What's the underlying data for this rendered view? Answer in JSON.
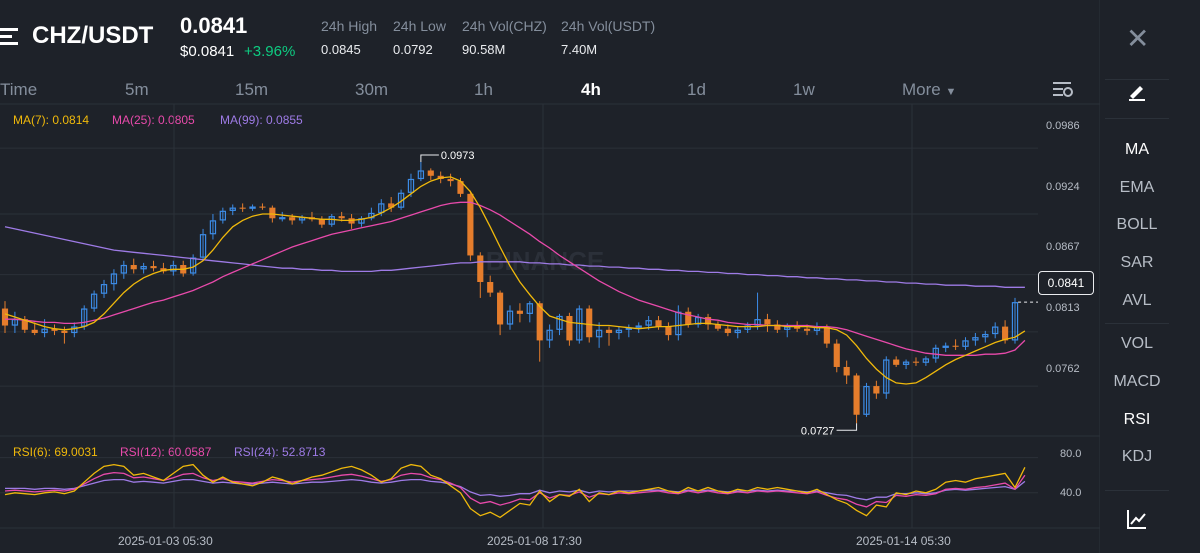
{
  "header": {
    "pair": "CHZ/USDT",
    "price": "0.0841",
    "usd_price": "$0.0841",
    "change": "+3.96%",
    "stats": [
      {
        "label": "24h High",
        "value": "0.0845"
      },
      {
        "label": "24h Low",
        "value": "0.0792"
      },
      {
        "label": "24h Vol(CHZ)",
        "value": "90.58M"
      },
      {
        "label": "24h Vol(USDT)",
        "value": "7.40M"
      }
    ]
  },
  "timeframes": [
    "Time",
    "5m",
    "15m",
    "30m",
    "1h",
    "4h",
    "1d",
    "1w",
    "More"
  ],
  "active_timeframe": "4h",
  "ma_legend": [
    {
      "label": "MA(7): 0.0814",
      "color": "#f0b90b"
    },
    {
      "label": "MA(25): 0.0805",
      "color": "#e84aab"
    },
    {
      "label": "MA(99): 0.0855",
      "color": "#9e7be6"
    }
  ],
  "rsi_legend": [
    {
      "label": "RSI(6): 69.0031",
      "color": "#f0b90b"
    },
    {
      "label": "RSI(12): 60.0587",
      "color": "#e84aab"
    },
    {
      "label": "RSI(24): 52.8713",
      "color": "#9e7be6"
    }
  ],
  "price_axis": [
    "0.0986",
    "0.0924",
    "0.0867",
    "0.0813",
    "0.0762"
  ],
  "current_price_tag": "0.0841",
  "rsi_axis": [
    "80.0",
    "40.0"
  ],
  "x_axis": [
    "2025-01-03 05:30",
    "2025-01-08 17:30",
    "2025-01-14 05:30"
  ],
  "annotations": {
    "high": "0.0973",
    "low": "0.0727"
  },
  "watermark": "BINANCE",
  "sidebar": {
    "indicators_main": [
      "MA",
      "EMA",
      "BOLL",
      "SAR",
      "AVL"
    ],
    "indicators_sub": [
      "VOL",
      "MACD",
      "RSI",
      "KDJ"
    ],
    "active_main": "MA",
    "active_sub": "RSI"
  },
  "colors": {
    "up": "#3c8ce7",
    "down": "#e57d2c",
    "bg": "#1e2229"
  },
  "chart_data": {
    "type": "candlestick",
    "interval": "4h",
    "price_range": [
      0.0715,
      0.1005
    ],
    "ohlc": [
      [
        0.0835,
        0.0842,
        0.0812,
        0.0819
      ],
      [
        0.0819,
        0.0832,
        0.0812,
        0.0825
      ],
      [
        0.0825,
        0.0828,
        0.0812,
        0.0815
      ],
      [
        0.0815,
        0.0822,
        0.081,
        0.0812
      ],
      [
        0.0812,
        0.0825,
        0.0808,
        0.0816
      ],
      [
        0.0816,
        0.082,
        0.081,
        0.0814
      ],
      [
        0.0814,
        0.0818,
        0.0802,
        0.0812
      ],
      [
        0.0812,
        0.0822,
        0.0808,
        0.0818
      ],
      [
        0.0818,
        0.0838,
        0.0815,
        0.0835
      ],
      [
        0.0835,
        0.0852,
        0.0832,
        0.0849
      ],
      [
        0.0849,
        0.0862,
        0.0845,
        0.0858
      ],
      [
        0.0858,
        0.0872,
        0.0852,
        0.0868
      ],
      [
        0.0868,
        0.088,
        0.0863,
        0.0876
      ],
      [
        0.0876,
        0.0882,
        0.0868,
        0.0872
      ],
      [
        0.0872,
        0.0878,
        0.0868,
        0.0875
      ],
      [
        0.0875,
        0.088,
        0.087,
        0.0873
      ],
      [
        0.0873,
        0.0878,
        0.0868,
        0.087
      ],
      [
        0.087,
        0.088,
        0.0866,
        0.0876
      ],
      [
        0.0876,
        0.088,
        0.0865,
        0.0868
      ],
      [
        0.0868,
        0.0886,
        0.0866,
        0.0883
      ],
      [
        0.0883,
        0.091,
        0.088,
        0.0905
      ],
      [
        0.0905,
        0.0924,
        0.09,
        0.0918
      ],
      [
        0.0918,
        0.093,
        0.0915,
        0.0927
      ],
      [
        0.0927,
        0.0933,
        0.0923,
        0.093
      ],
      [
        0.093,
        0.0934,
        0.0926,
        0.0929
      ],
      [
        0.0929,
        0.0933,
        0.0927,
        0.0931
      ],
      [
        0.0931,
        0.0934,
        0.0928,
        0.093
      ],
      [
        0.093,
        0.0932,
        0.0916,
        0.092
      ],
      [
        0.092,
        0.0926,
        0.0917,
        0.0921
      ],
      [
        0.0921,
        0.0924,
        0.0914,
        0.0918
      ],
      [
        0.0918,
        0.0923,
        0.0915,
        0.0921
      ],
      [
        0.0921,
        0.0926,
        0.0917,
        0.0919
      ],
      [
        0.0919,
        0.0922,
        0.0911,
        0.0914
      ],
      [
        0.0914,
        0.0924,
        0.0912,
        0.0922
      ],
      [
        0.0922,
        0.0926,
        0.0917,
        0.092
      ],
      [
        0.092,
        0.0924,
        0.091,
        0.0915
      ],
      [
        0.0915,
        0.0922,
        0.0912,
        0.092
      ],
      [
        0.092,
        0.093,
        0.0918,
        0.0925
      ],
      [
        0.0925,
        0.0938,
        0.0922,
        0.0934
      ],
      [
        0.0934,
        0.094,
        0.0926,
        0.093
      ],
      [
        0.093,
        0.0947,
        0.0928,
        0.0944
      ],
      [
        0.0944,
        0.0962,
        0.094,
        0.0957
      ],
      [
        0.0957,
        0.0973,
        0.0955,
        0.0965
      ],
      [
        0.0965,
        0.0967,
        0.0956,
        0.096
      ],
      [
        0.096,
        0.0964,
        0.0953,
        0.0957
      ],
      [
        0.0957,
        0.0962,
        0.095,
        0.0955
      ],
      [
        0.0955,
        0.0958,
        0.094,
        0.0943
      ],
      [
        0.0943,
        0.0946,
        0.088,
        0.0885
      ],
      [
        0.0885,
        0.0888,
        0.0845,
        0.086
      ],
      [
        0.086,
        0.0866,
        0.0846,
        0.085
      ],
      [
        0.085,
        0.0852,
        0.081,
        0.082
      ],
      [
        0.082,
        0.0838,
        0.0815,
        0.0833
      ],
      [
        0.0833,
        0.084,
        0.0822,
        0.083
      ],
      [
        0.083,
        0.0842,
        0.0822,
        0.084
      ],
      [
        0.084,
        0.0842,
        0.0785,
        0.0805
      ],
      [
        0.0805,
        0.082,
        0.0798,
        0.0815
      ],
      [
        0.0815,
        0.083,
        0.081,
        0.0828
      ],
      [
        0.0828,
        0.0831,
        0.08,
        0.0805
      ],
      [
        0.0805,
        0.0838,
        0.0802,
        0.0835
      ],
      [
        0.0835,
        0.0838,
        0.0803,
        0.0808
      ],
      [
        0.0808,
        0.0822,
        0.0798,
        0.0815
      ],
      [
        0.0815,
        0.0818,
        0.08,
        0.0812
      ],
      [
        0.0812,
        0.0818,
        0.0806,
        0.0815
      ],
      [
        0.0815,
        0.082,
        0.0808,
        0.0817
      ],
      [
        0.0817,
        0.0822,
        0.0812,
        0.0819
      ],
      [
        0.0819,
        0.0828,
        0.0815,
        0.0824
      ],
      [
        0.0824,
        0.0828,
        0.0815,
        0.0818
      ],
      [
        0.0818,
        0.0822,
        0.0805,
        0.081
      ],
      [
        0.081,
        0.0838,
        0.0805,
        0.0832
      ],
      [
        0.0832,
        0.0836,
        0.0817,
        0.082
      ],
      [
        0.082,
        0.083,
        0.0817,
        0.0827
      ],
      [
        0.0827,
        0.083,
        0.0815,
        0.082
      ],
      [
        0.082,
        0.0823,
        0.0814,
        0.0816
      ],
      [
        0.0816,
        0.082,
        0.0809,
        0.0812
      ],
      [
        0.0812,
        0.0818,
        0.0807,
        0.0815
      ],
      [
        0.0815,
        0.0822,
        0.0812,
        0.0819
      ],
      [
        0.0819,
        0.085,
        0.0815,
        0.0825
      ],
      [
        0.0825,
        0.083,
        0.0813,
        0.082
      ],
      [
        0.082,
        0.0824,
        0.0812,
        0.0815
      ],
      [
        0.0815,
        0.0821,
        0.0808,
        0.0818
      ],
      [
        0.0818,
        0.0823,
        0.0813,
        0.0816
      ],
      [
        0.0816,
        0.082,
        0.081,
        0.0814
      ],
      [
        0.0814,
        0.0822,
        0.081,
        0.0818
      ],
      [
        0.0818,
        0.082,
        0.0798,
        0.0802
      ],
      [
        0.0802,
        0.0806,
        0.0775,
        0.078
      ],
      [
        0.078,
        0.0786,
        0.0764,
        0.0772
      ],
      [
        0.0772,
        0.0774,
        0.0727,
        0.0735
      ],
      [
        0.0735,
        0.0765,
        0.0733,
        0.0762
      ],
      [
        0.0762,
        0.0767,
        0.075,
        0.0755
      ],
      [
        0.0755,
        0.079,
        0.075,
        0.0787
      ],
      [
        0.0787,
        0.079,
        0.078,
        0.0782
      ],
      [
        0.0782,
        0.0787,
        0.0778,
        0.0785
      ],
      [
        0.0785,
        0.0789,
        0.0781,
        0.0784
      ],
      [
        0.0784,
        0.079,
        0.0781,
        0.0788
      ],
      [
        0.0788,
        0.0801,
        0.0784,
        0.0798
      ],
      [
        0.0798,
        0.0803,
        0.0794,
        0.08
      ],
      [
        0.08,
        0.0806,
        0.0796,
        0.0799
      ],
      [
        0.0799,
        0.0808,
        0.0796,
        0.0805
      ],
      [
        0.0805,
        0.0812,
        0.08,
        0.0808
      ],
      [
        0.0808,
        0.0814,
        0.0803,
        0.0811
      ],
      [
        0.0811,
        0.0822,
        0.0807,
        0.0818
      ],
      [
        0.0818,
        0.0824,
        0.0802,
        0.0805
      ],
      [
        0.0805,
        0.0845,
        0.0802,
        0.0841
      ]
    ],
    "ma7": [
      0.083,
      0.0827,
      0.0824,
      0.0821,
      0.0818,
      0.0816,
      0.0815,
      0.0816,
      0.0818,
      0.0822,
      0.083,
      0.084,
      0.085,
      0.0858,
      0.0864,
      0.0868,
      0.0871,
      0.0872,
      0.0872,
      0.0874,
      0.088,
      0.089,
      0.0902,
      0.0912,
      0.0918,
      0.0922,
      0.0924,
      0.0924,
      0.0923,
      0.0922,
      0.0921,
      0.092,
      0.0919,
      0.0919,
      0.0918,
      0.0918,
      0.0919,
      0.0921,
      0.0925,
      0.093,
      0.0936,
      0.0943,
      0.095,
      0.0955,
      0.0958,
      0.0959,
      0.0955,
      0.0945,
      0.093,
      0.0912,
      0.0893,
      0.0875,
      0.086,
      0.0848,
      0.0837,
      0.0828,
      0.0825,
      0.0822,
      0.0821,
      0.082,
      0.0819,
      0.0819,
      0.0818,
      0.0817,
      0.0816,
      0.0817,
      0.0818,
      0.0818,
      0.0819,
      0.082,
      0.0821,
      0.0821,
      0.082,
      0.0819,
      0.0818,
      0.0818,
      0.0818,
      0.0819,
      0.0819,
      0.0818,
      0.0818,
      0.0818,
      0.0817,
      0.0817,
      0.0815,
      0.081,
      0.08,
      0.0788,
      0.0778,
      0.077,
      0.0765,
      0.0764,
      0.0765,
      0.077,
      0.0776,
      0.0782,
      0.0787,
      0.0791,
      0.0795,
      0.0799,
      0.0803,
      0.0806,
      0.0808,
      0.0814
    ],
    "ma25": [
      0.0825,
      0.0825,
      0.0824,
      0.0823,
      0.0822,
      0.0822,
      0.0821,
      0.0821,
      0.0822,
      0.0824,
      0.0826,
      0.0829,
      0.0832,
      0.0835,
      0.0838,
      0.0841,
      0.0843,
      0.0846,
      0.0849,
      0.0852,
      0.0856,
      0.086,
      0.0865,
      0.0869,
      0.0873,
      0.0877,
      0.0881,
      0.0885,
      0.0889,
      0.0893,
      0.0896,
      0.0899,
      0.0902,
      0.0905,
      0.0907,
      0.0909,
      0.0911,
      0.0913,
      0.0915,
      0.0917,
      0.092,
      0.0923,
      0.0926,
      0.0929,
      0.0932,
      0.0934,
      0.0935,
      0.0935,
      0.0932,
      0.0928,
      0.0923,
      0.0917,
      0.0911,
      0.0905,
      0.0898,
      0.0892,
      0.0885,
      0.0879,
      0.0873,
      0.0867,
      0.0861,
      0.0856,
      0.0851,
      0.0847,
      0.0843,
      0.084,
      0.0837,
      0.0834,
      0.0831,
      0.0829,
      0.0827,
      0.0825,
      0.0824,
      0.0822,
      0.0821,
      0.082,
      0.082,
      0.0819,
      0.0819,
      0.0819,
      0.0819,
      0.0819,
      0.0818,
      0.0818,
      0.0817,
      0.0815,
      0.0812,
      0.0809,
      0.0806,
      0.0803,
      0.08,
      0.0797,
      0.0795,
      0.0793,
      0.0792,
      0.0791,
      0.0791,
      0.0791,
      0.0791,
      0.0792,
      0.0792,
      0.0793,
      0.0796,
      0.0805
    ],
    "ma99": [
      0.0912,
      0.091,
      0.0908,
      0.0906,
      0.0904,
      0.0902,
      0.09,
      0.0898,
      0.0896,
      0.0894,
      0.0892,
      0.089,
      0.0889,
      0.0888,
      0.0887,
      0.0886,
      0.0885,
      0.0884,
      0.0883,
      0.0882,
      0.0881,
      0.088,
      0.0879,
      0.0878,
      0.0877,
      0.0876,
      0.0875,
      0.0874,
      0.0873,
      0.0873,
      0.0872,
      0.0872,
      0.0871,
      0.0871,
      0.087,
      0.087,
      0.087,
      0.087,
      0.0871,
      0.0871,
      0.0872,
      0.0873,
      0.0874,
      0.0875,
      0.0876,
      0.0877,
      0.0878,
      0.0878,
      0.0879,
      0.0879,
      0.0879,
      0.0879,
      0.0879,
      0.0878,
      0.0878,
      0.0877,
      0.0877,
      0.0876,
      0.0876,
      0.0875,
      0.0875,
      0.0874,
      0.0874,
      0.0873,
      0.0873,
      0.0872,
      0.0872,
      0.0871,
      0.0871,
      0.087,
      0.087,
      0.0869,
      0.0869,
      0.0868,
      0.0868,
      0.0867,
      0.0867,
      0.0866,
      0.0866,
      0.0865,
      0.0865,
      0.0864,
      0.0864,
      0.0863,
      0.0863,
      0.0862,
      0.0862,
      0.0861,
      0.0861,
      0.086,
      0.086,
      0.0859,
      0.0859,
      0.0858,
      0.0858,
      0.0857,
      0.0857,
      0.0857,
      0.0856,
      0.0856,
      0.0856,
      0.0855,
      0.0855,
      0.0855
    ],
    "rsi_range": [
      0,
      100
    ],
    "rsi6": [
      38,
      40,
      39,
      38,
      40,
      41,
      39,
      42,
      52,
      62,
      70,
      72,
      70,
      60,
      62,
      58,
      54,
      62,
      70,
      72,
      60,
      52,
      58,
      52,
      50,
      48,
      52,
      58,
      55,
      50,
      54,
      58,
      60,
      64,
      68,
      70,
      66,
      60,
      52,
      56,
      68,
      72,
      70,
      60,
      56,
      48,
      40,
      22,
      14,
      18,
      12,
      20,
      28,
      26,
      42,
      30,
      38,
      36,
      44,
      30,
      40,
      38,
      42,
      40,
      42,
      44,
      46,
      42,
      40,
      46,
      42,
      46,
      42,
      40,
      44,
      42,
      46,
      44,
      46,
      44,
      42,
      40,
      44,
      38,
      32,
      28,
      20,
      14,
      26,
      24,
      40,
      38,
      42,
      40,
      44,
      52,
      54,
      52,
      56,
      58,
      60,
      62,
      46,
      69
    ],
    "rsi12": [
      42,
      43,
      42,
      41,
      42,
      43,
      42,
      44,
      50,
      56,
      61,
      63,
      62,
      57,
      58,
      56,
      54,
      57,
      61,
      62,
      57,
      54,
      56,
      53,
      52,
      51,
      53,
      55,
      54,
      52,
      54,
      55,
      56,
      58,
      60,
      61,
      59,
      56,
      53,
      55,
      60,
      62,
      61,
      57,
      55,
      51,
      46,
      34,
      28,
      30,
      26,
      29,
      33,
      32,
      40,
      34,
      38,
      37,
      41,
      35,
      39,
      38,
      40,
      39,
      40,
      41,
      42,
      40,
      39,
      42,
      40,
      42,
      40,
      39,
      41,
      40,
      42,
      41,
      42,
      41,
      40,
      39,
      41,
      37,
      34,
      32,
      27,
      24,
      30,
      29,
      37,
      36,
      38,
      37,
      39,
      44,
      45,
      44,
      46,
      47,
      49,
      51,
      44,
      60
    ],
    "rsi24": [
      45,
      45,
      45,
      44,
      45,
      45,
      44,
      45,
      48,
      51,
      54,
      55,
      55,
      52,
      53,
      52,
      51,
      53,
      55,
      55,
      53,
      51,
      52,
      51,
      50,
      50,
      51,
      52,
      51,
      50,
      51,
      52,
      52,
      53,
      54,
      55,
      54,
      52,
      51,
      52,
      54,
      55,
      55,
      53,
      52,
      50,
      47,
      41,
      37,
      38,
      36,
      37,
      39,
      39,
      43,
      40,
      42,
      41,
      43,
      40,
      42,
      41,
      42,
      42,
      42,
      43,
      43,
      42,
      41,
      43,
      42,
      43,
      42,
      41,
      42,
      42,
      43,
      42,
      43,
      42,
      42,
      41,
      42,
      40,
      38,
      37,
      34,
      32,
      35,
      35,
      39,
      39,
      40,
      39,
      40,
      43,
      44,
      43,
      44,
      45,
      46,
      47,
      44,
      53
    ]
  }
}
